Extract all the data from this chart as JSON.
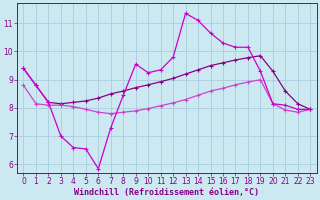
{
  "xlabel": "Windchill (Refroidissement éolien,°C)",
  "background_color": "#cce8f0",
  "grid_color": "#aaccdd",
  "spine_color": "#880088",
  "xlim": [
    -0.5,
    23.5
  ],
  "ylim": [
    5.7,
    11.7
  ],
  "xticks": [
    0,
    1,
    2,
    3,
    4,
    5,
    6,
    7,
    8,
    9,
    10,
    11,
    12,
    13,
    14,
    15,
    16,
    17,
    18,
    19,
    20,
    21,
    22,
    23
  ],
  "yticks": [
    6,
    7,
    8,
    9,
    10,
    11
  ],
  "line_jagged_color": "#cc00cc",
  "line_upper_color": "#880088",
  "line_lower_color": "#cc44cc",
  "line_jagged_x": [
    0,
    1,
    2,
    3,
    4,
    5,
    6,
    7,
    8,
    9,
    10,
    11,
    12,
    13,
    14,
    15,
    16,
    17,
    18,
    19,
    20,
    21,
    22,
    23
  ],
  "line_jagged_y": [
    9.4,
    8.8,
    8.2,
    7.0,
    6.6,
    6.55,
    5.85,
    7.3,
    8.45,
    9.55,
    9.25,
    9.35,
    9.8,
    11.35,
    11.1,
    10.65,
    10.3,
    10.15,
    10.15,
    9.3,
    8.15,
    8.1,
    7.95,
    7.95
  ],
  "line_upper_x": [
    0,
    1,
    2,
    3,
    4,
    5,
    6,
    7,
    8,
    9,
    10,
    11,
    12,
    13,
    14,
    15,
    16,
    17,
    18,
    19,
    20,
    21,
    22,
    23
  ],
  "line_upper_y": [
    9.4,
    8.8,
    8.2,
    8.15,
    8.2,
    8.25,
    8.35,
    8.5,
    8.6,
    8.72,
    8.82,
    8.93,
    9.05,
    9.2,
    9.35,
    9.5,
    9.6,
    9.7,
    9.78,
    9.85,
    9.3,
    8.6,
    8.15,
    7.95
  ],
  "line_lower_x": [
    0,
    1,
    2,
    3,
    4,
    5,
    6,
    7,
    8,
    9,
    10,
    11,
    12,
    13,
    14,
    15,
    16,
    17,
    18,
    19,
    20,
    21,
    22,
    23
  ],
  "line_lower_y": [
    8.8,
    8.15,
    8.1,
    8.1,
    8.05,
    7.95,
    7.85,
    7.8,
    7.85,
    7.9,
    7.98,
    8.08,
    8.18,
    8.3,
    8.45,
    8.6,
    8.7,
    8.82,
    8.92,
    9.0,
    8.15,
    7.93,
    7.85,
    7.95
  ],
  "linewidth": 0.9,
  "markersize": 3.5,
  "tick_fontsize": 5.5,
  "label_fontsize": 6.0
}
